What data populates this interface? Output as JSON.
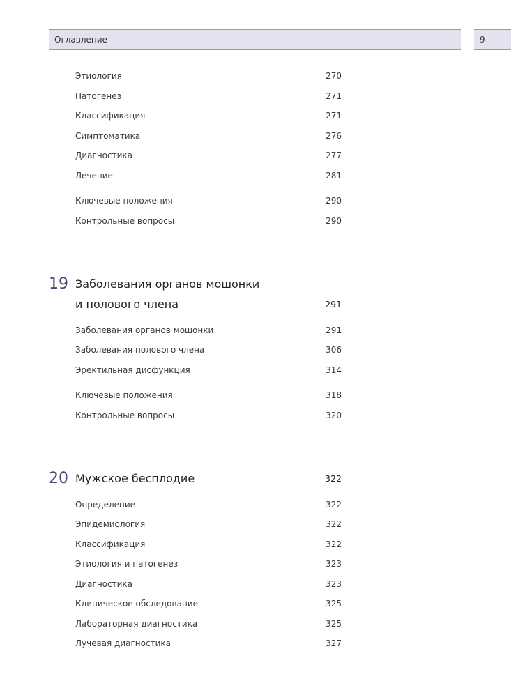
{
  "header": {
    "title": "Оглавление",
    "page_number": "9"
  },
  "section_a": [
    {
      "label": "Этиология",
      "page": "270"
    },
    {
      "label": "Патогенез",
      "page": "271"
    },
    {
      "label": "Классификация",
      "page": "271"
    },
    {
      "label": "Симптоматика",
      "page": "276"
    },
    {
      "label": "Диагностика",
      "page": "277"
    },
    {
      "label": "Лечение",
      "page": "281"
    },
    {
      "label": "Ключевые положения",
      "page": "290"
    },
    {
      "label": "Контрольные вопросы",
      "page": "290"
    }
  ],
  "chapter19": {
    "number": "19",
    "title_line1": "Заболевания органов мошонки",
    "title_line2": "и полового члена",
    "page": "291",
    "entries": [
      {
        "label": "Заболевания органов мошонки",
        "page": "291"
      },
      {
        "label": "Заболевания полового члена",
        "page": "306"
      },
      {
        "label": "Эректильная дисфункция",
        "page": "314"
      },
      {
        "label": "Ключевые положения",
        "page": "318"
      },
      {
        "label": "Контрольные вопросы",
        "page": "320"
      }
    ]
  },
  "chapter20": {
    "number": "20",
    "title": "Мужское бесплодие",
    "page": "322",
    "entries": [
      {
        "label": "Определение",
        "page": "322"
      },
      {
        "label": "Эпидемиология",
        "page": "322"
      },
      {
        "label": "Классификация",
        "page": "322"
      },
      {
        "label": "Этиология и патогенез",
        "page": "323"
      },
      {
        "label": "Диагностика",
        "page": "323"
      },
      {
        "label": "Клиническое обследование",
        "page": "325"
      },
      {
        "label": "Лабораторная диагностика",
        "page": "325"
      },
      {
        "label": "Лучевая диагностика",
        "page": "327"
      }
    ]
  }
}
